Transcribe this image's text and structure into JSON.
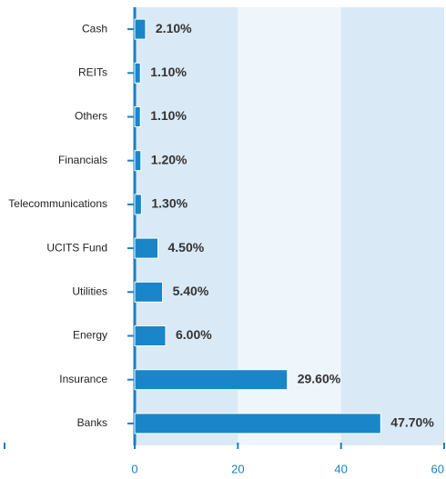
{
  "chart_data": {
    "type": "bar",
    "orientation": "horizontal",
    "categories": [
      "Cash",
      "REITs",
      "Others",
      "Financials",
      "Telecommunications",
      "UCITS Fund",
      "Utilities",
      "Energy",
      "Insurance",
      "Banks"
    ],
    "values": [
      2.1,
      1.1,
      1.1,
      1.2,
      1.3,
      4.5,
      5.4,
      6.0,
      29.6,
      47.7
    ],
    "value_labels": [
      "2.10%",
      "1.10%",
      "1.10%",
      "1.20%",
      "1.30%",
      "4.50%",
      "5.40%",
      "6.00%",
      "29.60%",
      "47.70%"
    ],
    "color": "#1a85c9",
    "xlim": [
      0,
      60
    ],
    "xticks": [
      0,
      20,
      40,
      60
    ]
  }
}
